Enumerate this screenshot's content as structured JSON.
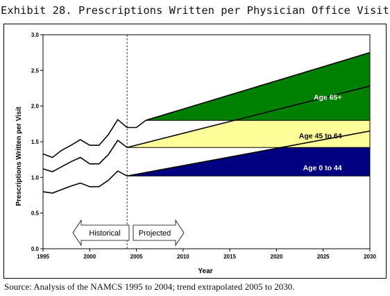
{
  "title": "Exhibit 28.  Prescriptions Written per Physician Office Visit",
  "source": "Source: Analysis of the NAMCS 1995 to 2004; trend extrapolated 2005 to 2030.",
  "chart_data": {
    "type": "area",
    "xlabel": "Year",
    "ylabel": "Prescriptions Written per Visit",
    "xlim": [
      1995,
      2030
    ],
    "ylim": [
      0,
      3
    ],
    "x_ticks": [
      "1995",
      "2000",
      "2005",
      "2010",
      "2015",
      "2020",
      "2025",
      "2030"
    ],
    "y_ticks": [
      "0.0",
      "0.5",
      "1.0",
      "1.5",
      "2.0",
      "2.5",
      "3.0"
    ],
    "divider_year": 2004,
    "historical_label": "Historical",
    "projected_label": "Projected",
    "series": [
      {
        "name": "Age 0 to 44",
        "color": "#000080",
        "label_color": "#ffffff",
        "historical": {
          "x": [
            1995,
            1996,
            1997,
            1998,
            1999,
            2000,
            2001,
            2002,
            2003,
            2004
          ],
          "y": [
            0.8,
            0.78,
            0.83,
            0.88,
            0.92,
            0.87,
            0.87,
            0.96,
            1.09,
            1.02
          ]
        },
        "projection": {
          "x": [
            2004,
            2030
          ],
          "y": [
            1.02,
            1.65
          ]
        },
        "baseline": 1.02,
        "label_pos": [
          2027,
          1.1
        ]
      },
      {
        "name": "Age 45 to 64",
        "color": "#ffff99",
        "label_color": "#000000",
        "historical": {
          "x": [
            1995,
            1996,
            1997,
            1998,
            1999,
            2000,
            2001,
            2002,
            2003,
            2004
          ],
          "y": [
            1.12,
            1.08,
            1.15,
            1.22,
            1.28,
            1.19,
            1.19,
            1.32,
            1.52,
            1.42
          ]
        },
        "projection": {
          "x": [
            2004,
            2030
          ],
          "y": [
            1.42,
            2.28
          ]
        },
        "baseline": 1.42,
        "label_pos": [
          2027,
          1.55
        ]
      },
      {
        "name": "Age 65+",
        "color": "#008000",
        "label_color": "#ffffff",
        "historical": {
          "x": [
            1995,
            1996,
            1997,
            1998,
            1999,
            2000,
            2001,
            2002,
            2003,
            2004,
            2005,
            2006
          ],
          "y": [
            1.33,
            1.28,
            1.38,
            1.45,
            1.53,
            1.45,
            1.45,
            1.6,
            1.81,
            1.7,
            1.7,
            1.8
          ]
        },
        "projection": {
          "x": [
            2006,
            2030
          ],
          "y": [
            1.8,
            2.75
          ]
        },
        "baseline": 1.8,
        "label_pos": [
          2027,
          2.09
        ]
      }
    ]
  }
}
